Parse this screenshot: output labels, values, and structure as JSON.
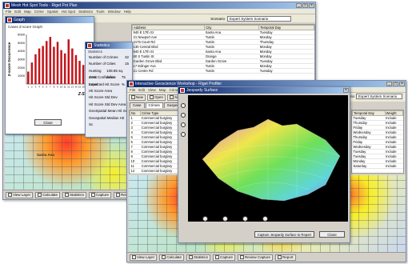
{
  "back_window": {
    "title": "Mesh Hot Spot Tools - Riget Pot Plan",
    "menu": [
      "File",
      "Edit",
      "Map",
      "Crime",
      "Spatial",
      "Hot Spot",
      "Statistics",
      "Tools",
      "Window",
      "Help"
    ],
    "scenario_label": "Scenario",
    "scenario_value": "Expert System Scenario",
    "columns": [
      "Address",
      "City",
      "Temporal Day"
    ],
    "rows": [
      [
        "940 E 17th St",
        "Santa Ana",
        "Tuesday"
      ],
      [
        "21 Newport Ave",
        "Tustin",
        "Monday"
      ],
      [
        "2175 Court Rd",
        "Tustin",
        "Thursday"
      ],
      [
        "130 Central Blvd",
        "Tustin",
        "Monday"
      ],
      [
        "940 E 17th St",
        "Santa Ana",
        "Monday"
      ],
      [
        "80 S Tustin St",
        "Orange",
        "Monday"
      ],
      [
        "Garden Grove Blvd",
        "Garden Grove",
        "Tuesday"
      ],
      [
        "17 Edinger Ave",
        "Tustin",
        "Monday"
      ],
      [
        "21 Centre Rd",
        "Tustin",
        "Tuesday"
      ]
    ]
  },
  "graph_window": {
    "title": "Graph",
    "chart_title": "Cases Z-score Graph",
    "ylabel": "Z-score Occurrence",
    "xlabel": "Z-Score",
    "close_label": "Close"
  },
  "chart_data": {
    "type": "bar",
    "title": "Cases Z-score Graph",
    "xlabel": "Z-Score",
    "ylabel": "Z-score Occurrence",
    "categories": [
      "1",
      "2",
      "3",
      "4",
      "5",
      "6",
      "7",
      "8",
      "9",
      "10",
      "11",
      "12",
      "13",
      "14",
      "15",
      "16",
      "17"
    ],
    "values": [
      1500,
      2600,
      3600,
      4300,
      4600,
      5200,
      5700,
      4500,
      5100,
      4100,
      3700,
      5400,
      4300,
      3500,
      2800,
      2300,
      1800
    ],
    "ylim": [
      0,
      6000
    ],
    "yticks": [
      1000,
      2000,
      3000,
      4000,
      5000,
      6000
    ],
    "bar_color": "#c4161c"
  },
  "stats_window": {
    "title": "Statistics",
    "section_label": "Statistics",
    "rows": [
      {
        "label": "Number of Crimes",
        "value": "32"
      },
      {
        "label": "Number of Cities",
        "value": "15"
      },
      {
        "label": "Hunting Area",
        "value": "108.85 sq. miles"
      },
      {
        "label": "Z-Hit Confidence Level",
        "value": "75 %"
      },
      {
        "label": "Expected Hit Score",
        "value": ""
      },
      {
        "label": "Hit Score Area",
        "value": ""
      },
      {
        "label": "Hit Score Std Dev",
        "value": ""
      },
      {
        "label": "Hit Score Std Dev Area",
        "value": ""
      },
      {
        "label": "GeoSpatial Mean Hit Sc",
        "value": ""
      },
      {
        "label": "Geospatial Median Hit Sc",
        "value": ""
      }
    ]
  },
  "front_window": {
    "title": "Interactive Geoscience Workshop - Riget Profiler",
    "menu": [
      "File",
      "Edit",
      "View",
      "Map",
      "Crime",
      "Spatial",
      "Analysis",
      "Scenario",
      "Tools",
      "Window",
      "Help"
    ],
    "toolbar": [
      {
        "label": "New",
        "icon": "new-icon"
      },
      {
        "label": "Open",
        "icon": "open-icon"
      },
      {
        "label": "Save",
        "icon": "save-icon"
      },
      {
        "label": "Close",
        "icon": "close-icon"
      },
      {
        "label": "Export",
        "icon": "export-icon"
      },
      {
        "label": "Reference",
        "icon": "reference-icon"
      },
      {
        "label": "Help",
        "icon": "help-icon"
      }
    ],
    "scenario_label": "Scenario",
    "scenario_value": "Expert System Scenario",
    "tabs": [
      "Case",
      "Crimes",
      "Suspects"
    ],
    "columns": [
      "No",
      "Crime Type"
    ],
    "rows": [
      [
        "1",
        "Commercial burglary"
      ],
      [
        "2",
        "Commercial burglary"
      ],
      [
        "3",
        "Commercial burglary"
      ],
      [
        "4",
        "Commercial burglary"
      ],
      [
        "5",
        "Commercial burglary"
      ],
      [
        "6",
        "Commercial burglary"
      ],
      [
        "7",
        "Commercial burglary"
      ],
      [
        "8",
        "Commercial burglary"
      ],
      [
        "9",
        "Commercial burglary"
      ],
      [
        "10",
        "Commercial burglary"
      ],
      [
        "11",
        "Commercial burglary"
      ],
      [
        "12",
        "Commercial burglary"
      ]
    ],
    "right_columns": [
      "Temporal Day",
      "Weight"
    ],
    "right_rows": [
      [
        "Tuesday",
        "Include"
      ],
      [
        "Thursday",
        "Include"
      ],
      [
        "Friday",
        "Include"
      ],
      [
        "Wednesday",
        "Include"
      ],
      [
        "Thursday",
        "Include"
      ],
      [
        "Friday",
        "Include"
      ],
      [
        "Wednesday",
        "Include"
      ],
      [
        "Tuesday",
        "Include"
      ],
      [
        "Tuesday",
        "Include"
      ],
      [
        "Monday",
        "Include"
      ],
      [
        "Saturday",
        "Include"
      ]
    ],
    "bottom_buttons": [
      {
        "label": "View Layer",
        "icon": "layer-icon"
      },
      {
        "label": "Calculate",
        "icon": "calculator-icon"
      },
      {
        "label": "Statistics",
        "icon": "statistics-icon"
      },
      {
        "label": "Capture",
        "icon": "capture-icon"
      },
      {
        "label": "Review Capture",
        "icon": "review-icon"
      },
      {
        "label": "Report",
        "icon": "report-icon"
      }
    ]
  },
  "surface_window": {
    "title": "Jeopardy Surface",
    "capture_label": "Capture Jeopardy Surface to Report",
    "close_label": "Close"
  },
  "back_bottom_buttons": [
    {
      "label": "View Layer"
    },
    {
      "label": "Calculate"
    },
    {
      "label": "Statistics"
    },
    {
      "label": "Capture"
    },
    {
      "label": "Review Capture"
    }
  ]
}
